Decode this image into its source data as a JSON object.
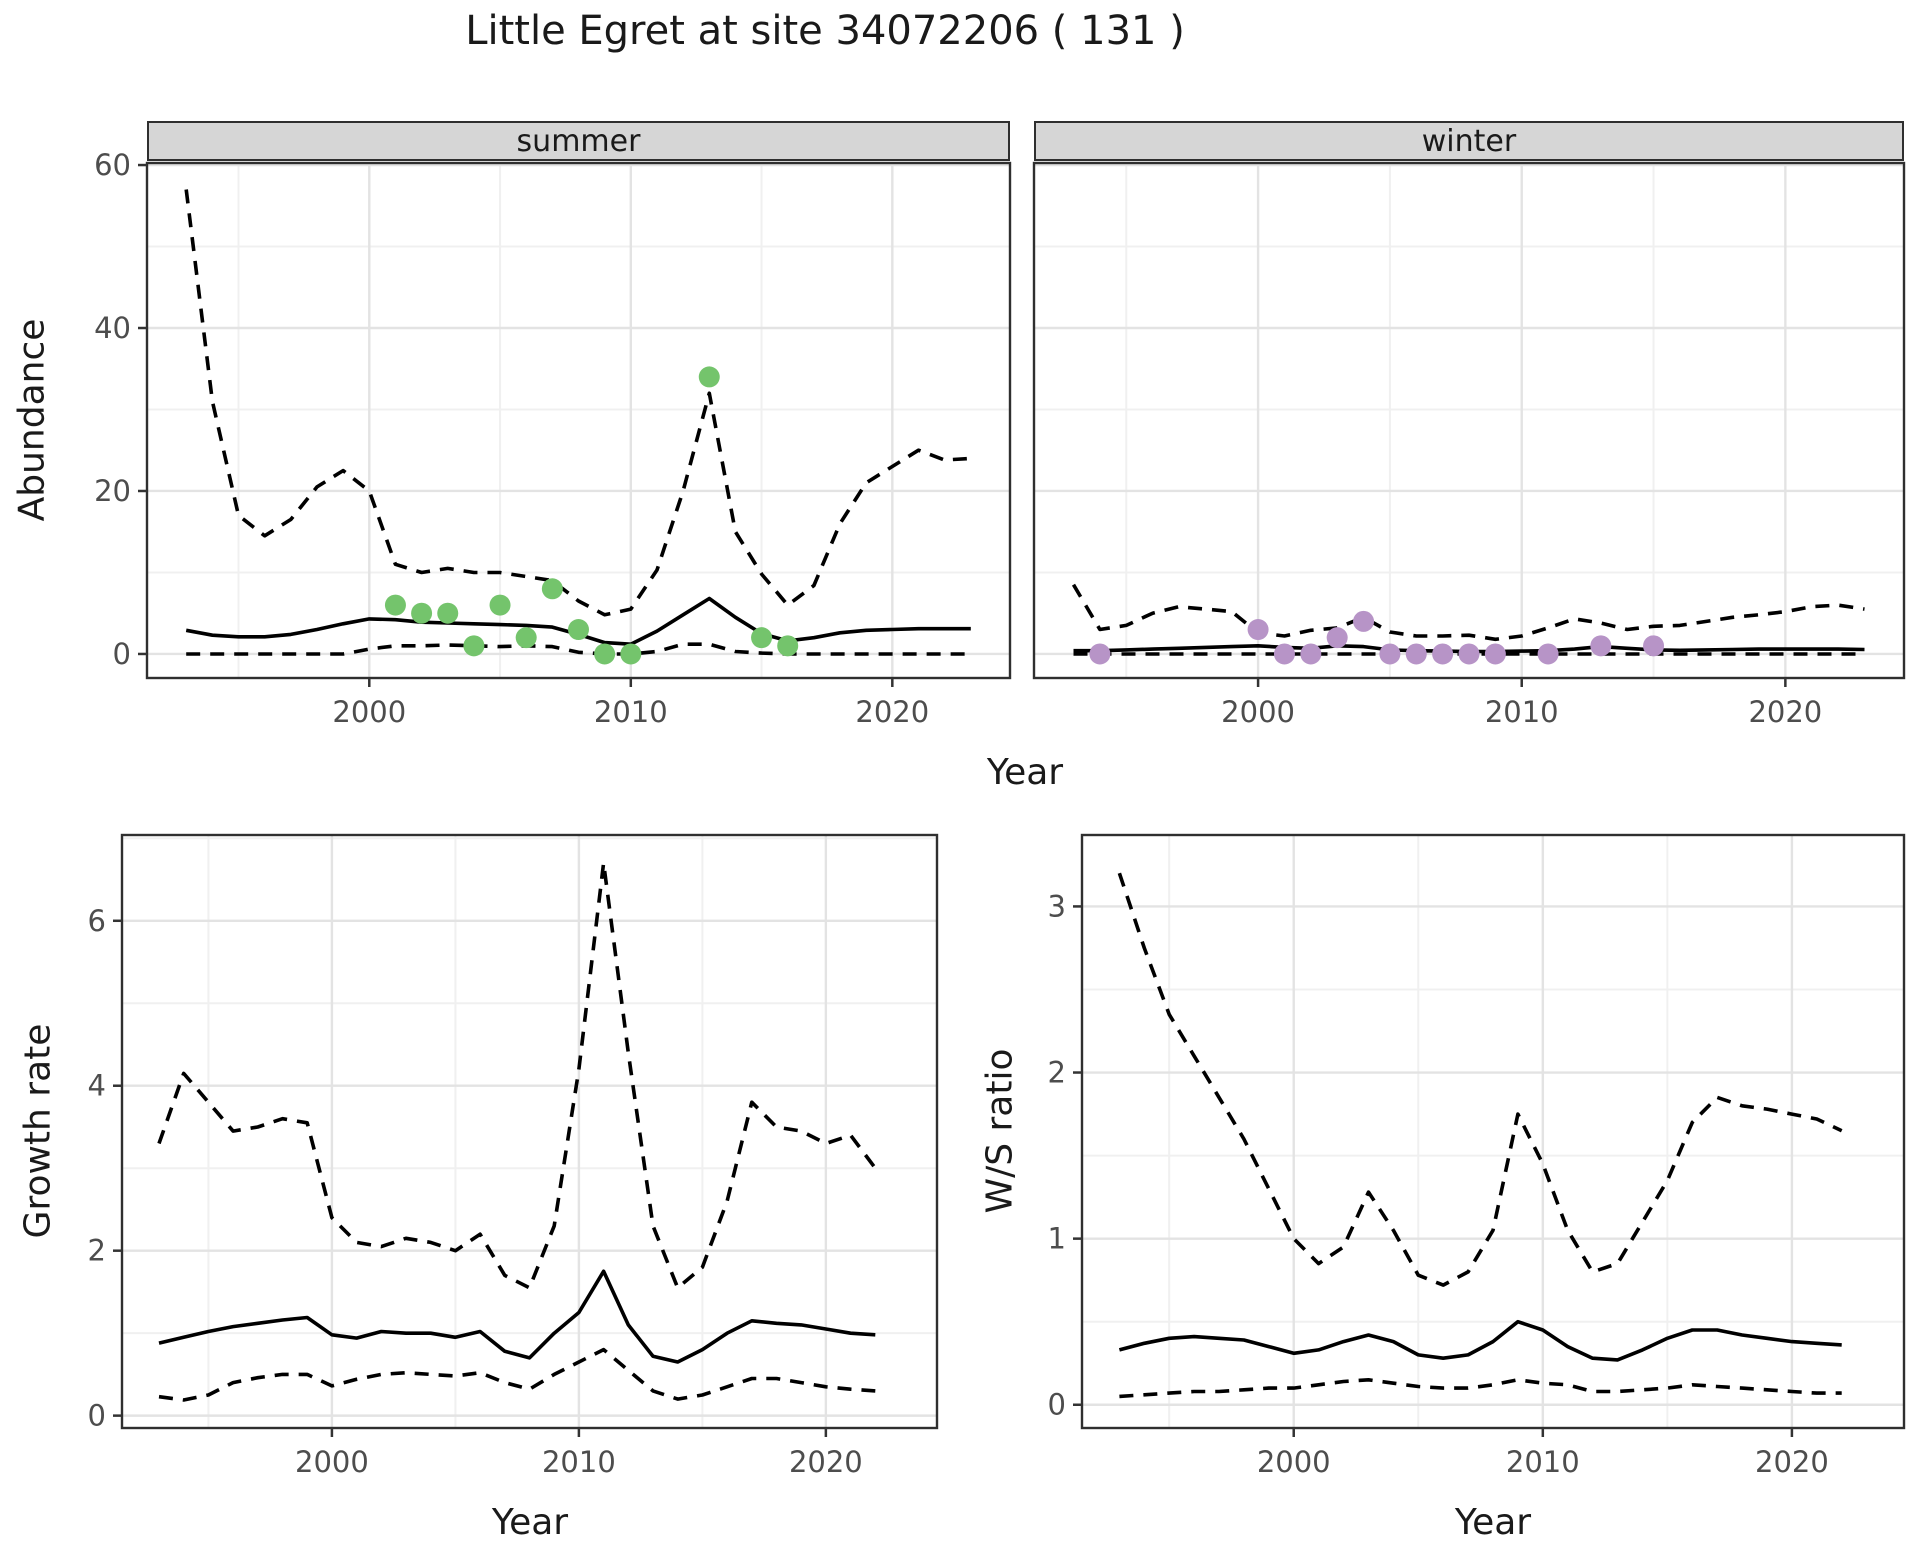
{
  "title": "Little Egret at site 34072206 ( 131 )",
  "shared": {
    "year_label": "Year"
  },
  "colors": {
    "summer_points": "#74c46c",
    "winter_points": "#b794c7",
    "line": "#000000",
    "grid_major": "#e3e3e3",
    "grid_minor": "#f0f0f0",
    "panel_border": "#2f2f2f",
    "tick_label": "#4d4d4d",
    "strip_fill": "#d6d6d6"
  },
  "chart_data": [
    {
      "id": "abundance-summer",
      "type": "line",
      "facet_label": "summer",
      "xlabel": "Year",
      "ylabel": "Abundance",
      "x_domain": [
        1991.5,
        2024.5
      ],
      "y_domain": [
        -2.95,
        60.25
      ],
      "x_major": [
        2000,
        2010,
        2020
      ],
      "x_minor": [
        1995,
        2005,
        2015
      ],
      "y_major": [
        0,
        20,
        40,
        60
      ],
      "y_minor": [
        10,
        30,
        50
      ],
      "years": [
        1993,
        1994,
        1995,
        1996,
        1997,
        1998,
        1999,
        2000,
        2001,
        2002,
        2003,
        2004,
        2005,
        2006,
        2007,
        2008,
        2009,
        2010,
        2011,
        2012,
        2013,
        2014,
        2015,
        2016,
        2017,
        2018,
        2019,
        2020,
        2021,
        2022,
        2023
      ],
      "series": [
        {
          "name": "fitted",
          "style": "solid",
          "values": [
            2.9,
            2.3,
            2.1,
            2.1,
            2.4,
            3.0,
            3.7,
            4.3,
            4.2,
            3.9,
            3.8,
            3.7,
            3.6,
            3.5,
            3.3,
            2.4,
            1.4,
            1.2,
            2.8,
            4.8,
            6.8,
            4.5,
            2.5,
            1.6,
            2.0,
            2.6,
            2.9,
            3.0,
            3.1,
            3.1,
            3.1
          ]
        },
        {
          "name": "upper-ci",
          "style": "dashed",
          "values": [
            57,
            31,
            17,
            14.5,
            16.5,
            20.5,
            22.5,
            20,
            11,
            10,
            10.5,
            10,
            10,
            9.5,
            9,
            6.5,
            4.8,
            5.5,
            10.3,
            20,
            32,
            15,
            9.8,
            6,
            8.4,
            16,
            21,
            23,
            25,
            23.8,
            24
          ]
        },
        {
          "name": "lower-ci",
          "style": "dashed",
          "values": [
            0,
            0,
            0,
            0,
            0,
            0,
            0,
            0.6,
            1.0,
            1.0,
            1.1,
            1.0,
            0.9,
            1.0,
            0.9,
            0.2,
            0,
            0,
            0.3,
            1.2,
            1.2,
            0.3,
            0.1,
            0,
            0,
            0,
            0,
            0,
            0,
            0,
            0
          ]
        }
      ],
      "points": {
        "name": "summer-observations",
        "color": "#74c46c",
        "data": [
          [
            2001,
            6
          ],
          [
            2002,
            5
          ],
          [
            2003,
            5
          ],
          [
            2004,
            1
          ],
          [
            2005,
            6
          ],
          [
            2006,
            2
          ],
          [
            2007,
            8
          ],
          [
            2008,
            3
          ],
          [
            2009,
            0
          ],
          [
            2010,
            0
          ],
          [
            2013,
            34
          ],
          [
            2015,
            2
          ],
          [
            2016,
            1
          ]
        ]
      }
    },
    {
      "id": "abundance-winter",
      "type": "line",
      "facet_label": "winter",
      "xlabel": "Year",
      "ylabel": "Abundance",
      "x_domain": [
        1991.5,
        2024.5
      ],
      "y_domain": [
        -2.95,
        60.25
      ],
      "x_major": [
        2000,
        2010,
        2020
      ],
      "x_minor": [
        1995,
        2005,
        2015
      ],
      "y_major": [
        0,
        20,
        40,
        60
      ],
      "y_minor": [
        10,
        30,
        50
      ],
      "years": [
        1993,
        1994,
        1995,
        1996,
        1997,
        1998,
        1999,
        2000,
        2001,
        2002,
        2003,
        2004,
        2005,
        2006,
        2007,
        2008,
        2009,
        2010,
        2011,
        2012,
        2013,
        2014,
        2015,
        2016,
        2017,
        2018,
        2019,
        2020,
        2021,
        2022,
        2023
      ],
      "series": [
        {
          "name": "fitted",
          "style": "solid",
          "values": [
            0.4,
            0.4,
            0.5,
            0.6,
            0.7,
            0.8,
            0.9,
            1.0,
            0.8,
            0.7,
            1.0,
            0.9,
            0.5,
            0.4,
            0.35,
            0.3,
            0.3,
            0.35,
            0.4,
            0.6,
            0.9,
            0.7,
            0.5,
            0.45,
            0.5,
            0.55,
            0.6,
            0.6,
            0.6,
            0.6,
            0.55
          ]
        },
        {
          "name": "upper-ci",
          "style": "dashed",
          "values": [
            8.5,
            3.0,
            3.5,
            5.0,
            5.8,
            5.5,
            5.2,
            2.6,
            2.2,
            2.9,
            3.2,
            4.5,
            2.7,
            2.2,
            2.2,
            2.3,
            1.8,
            2.2,
            3.2,
            4.3,
            3.8,
            3.0,
            3.4,
            3.5,
            4.0,
            4.5,
            4.8,
            5.2,
            5.8,
            6.0,
            5.5
          ]
        },
        {
          "name": "lower-ci",
          "style": "dashed",
          "values": [
            0,
            0,
            0,
            0,
            0,
            0,
            0,
            0,
            0,
            0,
            0,
            0,
            0,
            0,
            0,
            0,
            0,
            0,
            0,
            0,
            0,
            0,
            0,
            0,
            0,
            0,
            0,
            0,
            0,
            0,
            0
          ]
        }
      ],
      "points": {
        "name": "winter-observations",
        "color": "#b794c7",
        "data": [
          [
            1994,
            0
          ],
          [
            2000,
            3
          ],
          [
            2001,
            0
          ],
          [
            2002,
            0
          ],
          [
            2003,
            2
          ],
          [
            2004,
            4
          ],
          [
            2005,
            0
          ],
          [
            2006,
            0
          ],
          [
            2007,
            0
          ],
          [
            2008,
            0
          ],
          [
            2009,
            0
          ],
          [
            2011,
            0
          ],
          [
            2013,
            1
          ],
          [
            2015,
            1
          ]
        ]
      }
    },
    {
      "id": "growth-rate",
      "type": "line",
      "facet_label": "",
      "xlabel": "Year",
      "ylabel": "Growth rate",
      "x_domain": [
        1991.5,
        2024.5
      ],
      "y_domain": [
        -0.15,
        7.04
      ],
      "x_major": [
        2000,
        2010,
        2020
      ],
      "x_minor": [
        1995,
        2005,
        2015
      ],
      "y_major": [
        0,
        2,
        4,
        6
      ],
      "y_minor": [
        1,
        3,
        5,
        7
      ],
      "years": [
        1993,
        1994,
        1995,
        1996,
        1997,
        1998,
        1999,
        2000,
        2001,
        2002,
        2003,
        2004,
        2005,
        2006,
        2007,
        2008,
        2009,
        2010,
        2011,
        2012,
        2013,
        2014,
        2015,
        2016,
        2017,
        2018,
        2019,
        2020,
        2021,
        2022
      ],
      "series": [
        {
          "name": "fitted",
          "style": "solid",
          "values": [
            0.88,
            0.95,
            1.02,
            1.08,
            1.12,
            1.16,
            1.19,
            0.98,
            0.94,
            1.02,
            1.0,
            1.0,
            0.95,
            1.02,
            0.78,
            0.7,
            1.0,
            1.25,
            1.75,
            1.1,
            0.72,
            0.65,
            0.8,
            1.0,
            1.15,
            1.12,
            1.1,
            1.05,
            1.0,
            0.98
          ]
        },
        {
          "name": "upper-ci",
          "style": "dashed",
          "values": [
            3.3,
            4.15,
            3.8,
            3.45,
            3.5,
            3.6,
            3.55,
            2.4,
            2.1,
            2.05,
            2.15,
            2.1,
            2.0,
            2.2,
            1.7,
            1.55,
            2.3,
            4.2,
            6.7,
            4.4,
            2.3,
            1.55,
            1.8,
            2.6,
            3.8,
            3.5,
            3.45,
            3.3,
            3.4,
            3.0
          ]
        },
        {
          "name": "lower-ci",
          "style": "dashed",
          "values": [
            0.23,
            0.19,
            0.25,
            0.4,
            0.46,
            0.5,
            0.5,
            0.36,
            0.44,
            0.5,
            0.52,
            0.5,
            0.48,
            0.52,
            0.4,
            0.32,
            0.5,
            0.65,
            0.8,
            0.55,
            0.3,
            0.2,
            0.25,
            0.35,
            0.45,
            0.45,
            0.4,
            0.35,
            0.32,
            0.3
          ]
        }
      ]
    },
    {
      "id": "ws-ratio",
      "type": "line",
      "facet_label": "",
      "xlabel": "Year",
      "ylabel": "W/S ratio",
      "x_domain": [
        1991.5,
        2024.5
      ],
      "y_domain": [
        -0.14,
        3.43
      ],
      "x_major": [
        2000,
        2010,
        2020
      ],
      "x_minor": [
        1995,
        2005,
        2015
      ],
      "y_major": [
        0,
        1,
        2,
        3
      ],
      "y_minor": [
        0.5,
        1.5,
        2.5
      ],
      "years": [
        1993,
        1994,
        1995,
        1996,
        1997,
        1998,
        1999,
        2000,
        2001,
        2002,
        2003,
        2004,
        2005,
        2006,
        2007,
        2008,
        2009,
        2010,
        2011,
        2012,
        2013,
        2014,
        2015,
        2016,
        2017,
        2018,
        2019,
        2020,
        2021,
        2022
      ],
      "series": [
        {
          "name": "fitted",
          "style": "solid",
          "values": [
            0.33,
            0.37,
            0.4,
            0.41,
            0.4,
            0.39,
            0.35,
            0.31,
            0.33,
            0.38,
            0.42,
            0.38,
            0.3,
            0.28,
            0.3,
            0.38,
            0.5,
            0.45,
            0.35,
            0.28,
            0.27,
            0.33,
            0.4,
            0.45,
            0.45,
            0.42,
            0.4,
            0.38,
            0.37,
            0.36
          ]
        },
        {
          "name": "upper-ci",
          "style": "dashed",
          "values": [
            3.2,
            2.75,
            2.35,
            2.1,
            1.85,
            1.6,
            1.3,
            1.0,
            0.85,
            0.95,
            1.28,
            1.05,
            0.78,
            0.72,
            0.8,
            1.05,
            1.75,
            1.45,
            1.05,
            0.8,
            0.85,
            1.1,
            1.35,
            1.7,
            1.85,
            1.8,
            1.78,
            1.75,
            1.72,
            1.65
          ]
        },
        {
          "name": "lower-ci",
          "style": "dashed",
          "values": [
            0.05,
            0.06,
            0.07,
            0.08,
            0.08,
            0.09,
            0.1,
            0.1,
            0.12,
            0.14,
            0.15,
            0.13,
            0.11,
            0.1,
            0.1,
            0.12,
            0.15,
            0.13,
            0.12,
            0.08,
            0.08,
            0.09,
            0.1,
            0.12,
            0.11,
            0.1,
            0.09,
            0.08,
            0.07,
            0.07
          ]
        }
      ]
    }
  ]
}
